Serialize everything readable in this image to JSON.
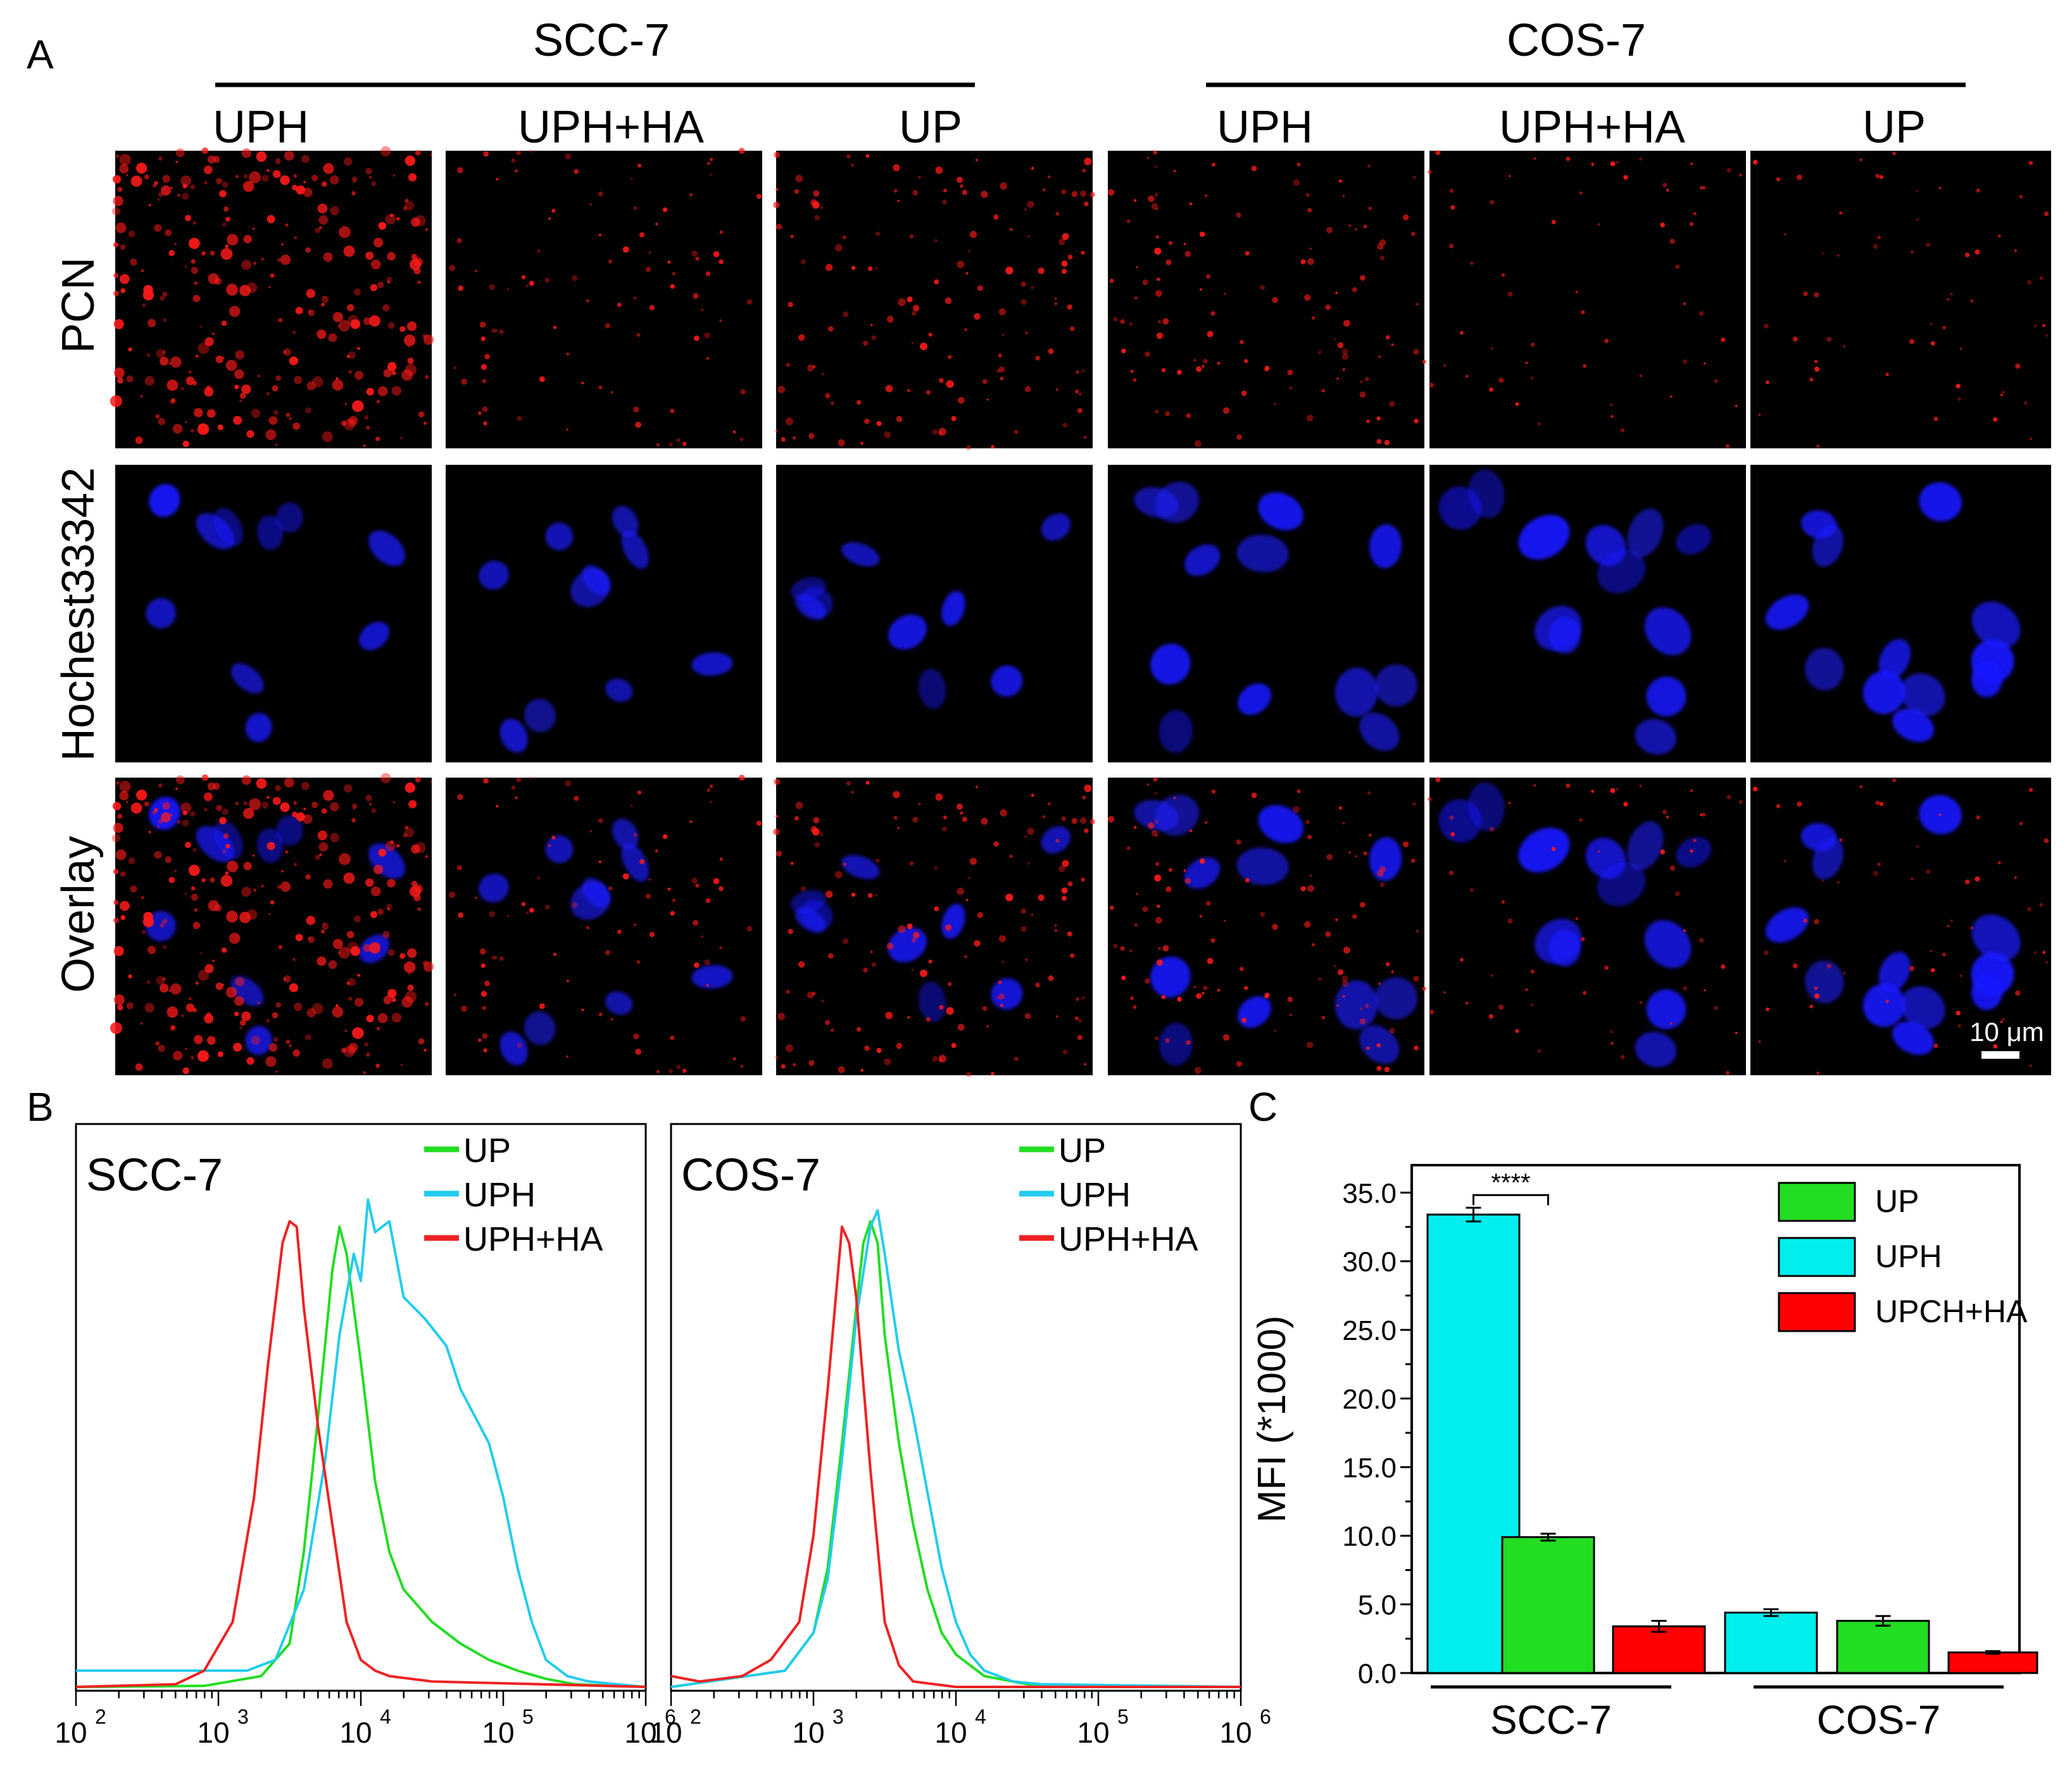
{
  "panel_labels": {
    "a": "A",
    "b": "B",
    "c": "C"
  },
  "panel_a": {
    "groups": [
      "SCC-7",
      "COS-7"
    ],
    "columns": [
      "UPH",
      "UPH+HA",
      "UP",
      "UPH",
      "UPH+HA",
      "UP"
    ],
    "rows": [
      "PCN",
      "Hochest33342",
      "Overlay"
    ],
    "scale_bar": "10 μm",
    "colors": {
      "pcn": "#ff1a1a",
      "nucleus": "#1a1aff",
      "background": "#000000"
    },
    "pcn_intensity": [
      1.0,
      0.25,
      0.45,
      0.35,
      0.12,
      0.12
    ]
  },
  "chart_data": [
    {
      "type": "line",
      "title": "SCC-7",
      "xlabel": "",
      "ylabel": "",
      "x_scale": "log",
      "xlim": [
        100,
        1000000
      ],
      "x_ticks": [
        {
          "base": "10",
          "exp": "2"
        },
        {
          "base": "10",
          "exp": "3"
        },
        {
          "base": "10",
          "exp": "4"
        },
        {
          "base": "10",
          "exp": "5"
        },
        {
          "base": "10",
          "exp": "6"
        }
      ],
      "ylim": [
        0,
        1.0
      ],
      "legend_position": "top-right",
      "series": [
        {
          "name": "UP",
          "color": "#22dd22",
          "log_x": [
            2.0,
            2.9,
            3.3,
            3.5,
            3.6,
            3.7,
            3.8,
            3.85,
            3.9,
            4.0,
            4.1,
            4.2,
            4.3,
            4.5,
            4.7,
            4.9,
            5.1,
            5.3,
            5.5,
            6.0
          ],
          "y": [
            0.0,
            0.002,
            0.02,
            0.08,
            0.25,
            0.5,
            0.77,
            0.85,
            0.8,
            0.6,
            0.38,
            0.25,
            0.18,
            0.12,
            0.08,
            0.05,
            0.03,
            0.015,
            0.005,
            0.0
          ]
        },
        {
          "name": "UPH",
          "color": "#22ccee",
          "log_x": [
            2.0,
            3.0,
            3.2,
            3.4,
            3.6,
            3.75,
            3.85,
            3.95,
            4.0,
            4.05,
            4.1,
            4.2,
            4.3,
            4.45,
            4.6,
            4.7,
            4.8,
            4.9,
            5.0,
            5.1,
            5.2,
            5.3,
            5.45,
            5.6,
            6.0
          ],
          "y": [
            0.03,
            0.03,
            0.03,
            0.05,
            0.18,
            0.42,
            0.65,
            0.8,
            0.75,
            0.9,
            0.84,
            0.86,
            0.72,
            0.68,
            0.63,
            0.55,
            0.5,
            0.45,
            0.35,
            0.22,
            0.12,
            0.05,
            0.02,
            0.01,
            0.0
          ]
        },
        {
          "name": "UPH+HA",
          "color": "#ee2222",
          "log_x": [
            2.0,
            2.7,
            2.9,
            3.1,
            3.25,
            3.35,
            3.45,
            3.5,
            3.55,
            3.6,
            3.7,
            3.8,
            3.9,
            4.0,
            4.1,
            4.2,
            4.5,
            6.0
          ],
          "y": [
            0.0,
            0.005,
            0.03,
            0.12,
            0.35,
            0.6,
            0.82,
            0.86,
            0.85,
            0.7,
            0.48,
            0.3,
            0.12,
            0.05,
            0.03,
            0.02,
            0.01,
            0.0
          ]
        }
      ]
    },
    {
      "type": "line",
      "title": "COS-7",
      "xlabel": "",
      "ylabel": "",
      "x_scale": "log",
      "xlim": [
        100,
        1000000
      ],
      "x_ticks": [
        {
          "base": "10",
          "exp": "2"
        },
        {
          "base": "10",
          "exp": "3"
        },
        {
          "base": "10",
          "exp": "4"
        },
        {
          "base": "10",
          "exp": "5"
        },
        {
          "base": "10",
          "exp": "6"
        }
      ],
      "ylim": [
        0,
        1.0
      ],
      "legend_position": "top-right",
      "series": [
        {
          "name": "UP",
          "color": "#22dd22",
          "log_x": [
            2.0,
            2.8,
            3.0,
            3.1,
            3.2,
            3.3,
            3.35,
            3.4,
            3.45,
            3.5,
            3.6,
            3.7,
            3.8,
            3.9,
            4.0,
            4.2,
            4.5,
            6.0
          ],
          "y": [
            0.0,
            0.03,
            0.1,
            0.22,
            0.45,
            0.7,
            0.82,
            0.86,
            0.82,
            0.65,
            0.45,
            0.3,
            0.18,
            0.1,
            0.06,
            0.02,
            0.005,
            0.0
          ]
        },
        {
          "name": "UPH",
          "color": "#22ccee",
          "log_x": [
            2.0,
            2.8,
            3.0,
            3.1,
            3.2,
            3.3,
            3.4,
            3.45,
            3.5,
            3.6,
            3.7,
            3.8,
            3.9,
            4.0,
            4.1,
            4.2,
            4.4,
            4.6,
            6.0
          ],
          "y": [
            0.0,
            0.03,
            0.1,
            0.2,
            0.42,
            0.68,
            0.85,
            0.88,
            0.8,
            0.62,
            0.5,
            0.36,
            0.22,
            0.12,
            0.06,
            0.03,
            0.01,
            0.005,
            0.0
          ]
        },
        {
          "name": "UPH+HA",
          "color": "#ee2222",
          "log_x": [
            2.0,
            2.2,
            2.5,
            2.7,
            2.9,
            3.0,
            3.1,
            3.15,
            3.2,
            3.25,
            3.3,
            3.4,
            3.5,
            3.6,
            3.7,
            4.0,
            6.0
          ],
          "y": [
            0.02,
            0.01,
            0.02,
            0.05,
            0.12,
            0.28,
            0.55,
            0.7,
            0.85,
            0.82,
            0.72,
            0.4,
            0.12,
            0.04,
            0.01,
            0.0,
            0.0
          ]
        }
      ]
    },
    {
      "type": "bar",
      "title": "",
      "xlabel": "",
      "ylabel": "MFI (*1000)",
      "ylim": [
        0,
        37
      ],
      "y_ticks": [
        "0.0",
        "5.0",
        "10.0",
        "15.0",
        "20.0",
        "25.0",
        "30.0",
        "35.0"
      ],
      "groups": [
        "SCC-7",
        "COS-7"
      ],
      "legend_position": "top-right",
      "legend": [
        {
          "name": "UP",
          "color": "#22dd22"
        },
        {
          "name": "UPH",
          "color": "#00eeee"
        },
        {
          "name": "UPCH+HA",
          "color": "#ff0000"
        }
      ],
      "bars": [
        {
          "group": "SCC-7",
          "series": "UPH",
          "value": 33.4,
          "error": 0.5,
          "color": "#00eeee"
        },
        {
          "group": "SCC-7",
          "series": "UP",
          "value": 9.9,
          "error": 0.25,
          "color": "#22dd22"
        },
        {
          "group": "SCC-7",
          "series": "UPCH+HA",
          "value": 3.4,
          "error": 0.4,
          "color": "#ff0000"
        },
        {
          "group": "COS-7",
          "series": "UPH",
          "value": 4.4,
          "error": 0.25,
          "color": "#00eeee"
        },
        {
          "group": "COS-7",
          "series": "UP",
          "value": 3.8,
          "error": 0.35,
          "color": "#22dd22"
        },
        {
          "group": "COS-7",
          "series": "UPCH+HA",
          "value": 1.5,
          "error": 0.1,
          "color": "#ff0000"
        }
      ],
      "annotations": [
        {
          "text": "****",
          "from_bar": 0,
          "to_bar": 1
        }
      ]
    }
  ]
}
